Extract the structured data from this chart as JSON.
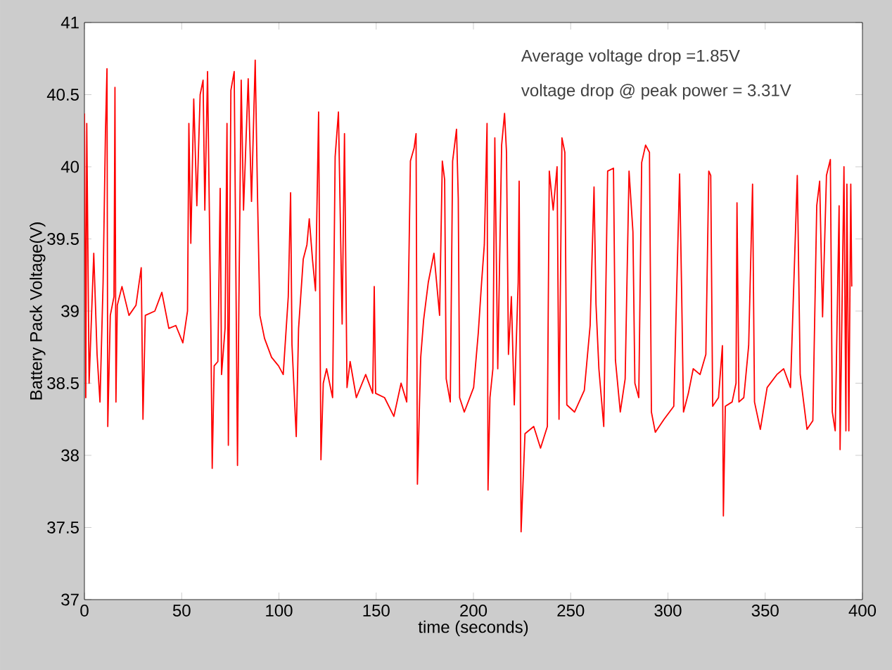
{
  "chart_data": {
    "type": "line",
    "xlabel": "time (seconds)",
    "ylabel": "Battery Pack Voltage(V)",
    "annotations": [
      "Average voltage drop =1.85V",
      "voltage drop @ peak power = 3.31V"
    ],
    "xlim": [
      0,
      400
    ],
    "ylim": [
      37,
      41
    ],
    "xticks": [
      0,
      50,
      100,
      150,
      200,
      250,
      300,
      350,
      400
    ],
    "yticks": [
      37,
      37.5,
      38,
      38.5,
      39,
      39.5,
      40,
      40.5,
      41
    ],
    "series": [
      {
        "color": "#ff0000",
        "x": [
          0,
          0.7,
          1.2,
          2.4,
          4.8,
          6.5,
          8,
          9.6,
          10.8,
          11.6,
          12,
          13.3,
          15.2,
          15.7,
          16.2,
          16.9,
          19.3,
          22.9,
          26.5,
          29.2,
          30.1,
          31.3,
          36.2,
          39.8,
          43.4,
          47,
          50.6,
          53,
          53.7,
          54.7,
          56.2,
          57.8,
          59.5,
          61,
          61.9,
          63.3,
          65,
          65.7,
          66.7,
          68.6,
          69.8,
          70.5,
          72.3,
          73.3,
          74,
          75.3,
          77,
          78.7,
          79.4,
          80.6,
          81.8,
          84.2,
          85.9,
          87.8,
          89,
          90.2,
          92.6,
          96.2,
          99.8,
          102.2,
          104.8,
          106,
          106.7,
          108.9,
          110.1,
          112.5,
          114.4,
          115.6,
          117.3,
          118.8,
          120.4,
          121.6,
          122.8,
          124.5,
          127.6,
          128.9,
          130.6,
          132.5,
          133.7,
          135,
          136.6,
          139.8,
          144.6,
          148.2,
          149,
          149.7,
          154.3,
          159.1,
          162.8,
          165.7,
          167.6,
          169.5,
          170.5,
          171.2,
          172.9,
          174.4,
          176.8,
          179.7,
          182.6,
          184,
          185.2,
          186,
          188.1,
          189.3,
          191.3,
          192.2,
          192.9,
          195.3,
          200.1,
          202.5,
          204.2,
          205.6,
          207,
          207.5,
          208.5,
          210,
          211,
          212.5,
          214.5,
          216,
          217,
          218,
          219.5,
          221,
          223,
          223.5,
          224.5,
          226.5,
          231,
          234.5,
          238,
          239,
          241,
          243,
          244,
          245.5,
          247,
          248,
          252,
          257,
          260,
          262,
          263,
          264.5,
          267,
          269,
          272,
          273,
          275.5,
          278,
          280,
          282,
          283,
          285,
          286.5,
          288.5,
          290.5,
          291.5,
          293.5,
          298,
          303,
          306,
          307,
          308,
          310.5,
          313,
          316.5,
          319.5,
          321,
          322,
          323,
          326,
          328,
          328.5,
          329.5,
          333,
          335,
          335.5,
          336.5,
          339,
          341.5,
          343.5,
          344.5,
          347.5,
          351,
          356,
          359.5,
          363,
          366.5,
          368,
          371.5,
          374.5,
          376.5,
          378,
          379.5,
          381.5,
          383.5,
          384.5,
          386,
          388,
          388.5,
          390.5,
          391.5,
          392,
          393,
          394,
          394.5
        ],
        "values": [
          40.37,
          38.4,
          40.3,
          38.5,
          39.4,
          38.7,
          38.37,
          39.2,
          40.23,
          40.68,
          38.2,
          38.97,
          39.1,
          40.55,
          38.37,
          39.04,
          39.17,
          38.97,
          39.04,
          39.3,
          38.25,
          38.97,
          39,
          39.13,
          38.88,
          38.9,
          38.78,
          39,
          40.3,
          39.47,
          40.47,
          39.73,
          40.5,
          40.6,
          39.7,
          40.66,
          38.88,
          37.91,
          38.62,
          38.65,
          39.85,
          38.56,
          38.88,
          40.3,
          38.07,
          40.53,
          40.66,
          37.93,
          39.04,
          40.6,
          39.7,
          40.61,
          39.76,
          40.74,
          39.79,
          38.97,
          38.81,
          38.68,
          38.62,
          38.56,
          39.1,
          39.82,
          38.77,
          38.13,
          38.88,
          39.36,
          39.46,
          39.64,
          39.35,
          39.14,
          40.38,
          37.97,
          38.5,
          38.6,
          38.4,
          40.07,
          40.38,
          38.91,
          40.23,
          38.47,
          38.65,
          38.4,
          38.56,
          38.43,
          39.17,
          38.43,
          38.4,
          38.27,
          38.5,
          38.37,
          40.04,
          40.13,
          40.23,
          37.8,
          38.68,
          38.94,
          39.2,
          39.4,
          38.97,
          40.04,
          39.91,
          38.53,
          38.37,
          40.04,
          40.26,
          39.78,
          38.4,
          38.3,
          38.47,
          38.85,
          39.2,
          39.46,
          40.3,
          37.76,
          38.4,
          38.6,
          40.2,
          38.6,
          40.15,
          40.37,
          40.1,
          38.7,
          39.1,
          38.35,
          39.2,
          39.9,
          37.47,
          38.15,
          38.2,
          38.05,
          38.2,
          39.97,
          39.7,
          40,
          38.25,
          40.2,
          40.1,
          38.35,
          38.3,
          38.45,
          38.9,
          39.86,
          39.05,
          38.6,
          38.2,
          39.97,
          39.99,
          38.66,
          38.3,
          38.53,
          39.97,
          39.55,
          38.5,
          38.4,
          40.03,
          40.15,
          40.1,
          38.3,
          38.16,
          38.25,
          38.34,
          39.95,
          39.17,
          38.3,
          38.43,
          38.6,
          38.56,
          38.7,
          39.97,
          39.94,
          38.34,
          38.4,
          38.76,
          37.58,
          38.34,
          38.37,
          38.5,
          39.75,
          38.37,
          38.4,
          38.76,
          39.88,
          38.37,
          38.18,
          38.47,
          38.56,
          38.6,
          38.47,
          39.94,
          38.56,
          38.18,
          38.24,
          39.73,
          39.9,
          38.96,
          39.94,
          40.05,
          38.3,
          38.17,
          39.73,
          38.04,
          40,
          38.17,
          39.88,
          38.17,
          39.88,
          39.17
        ]
      }
    ]
  }
}
